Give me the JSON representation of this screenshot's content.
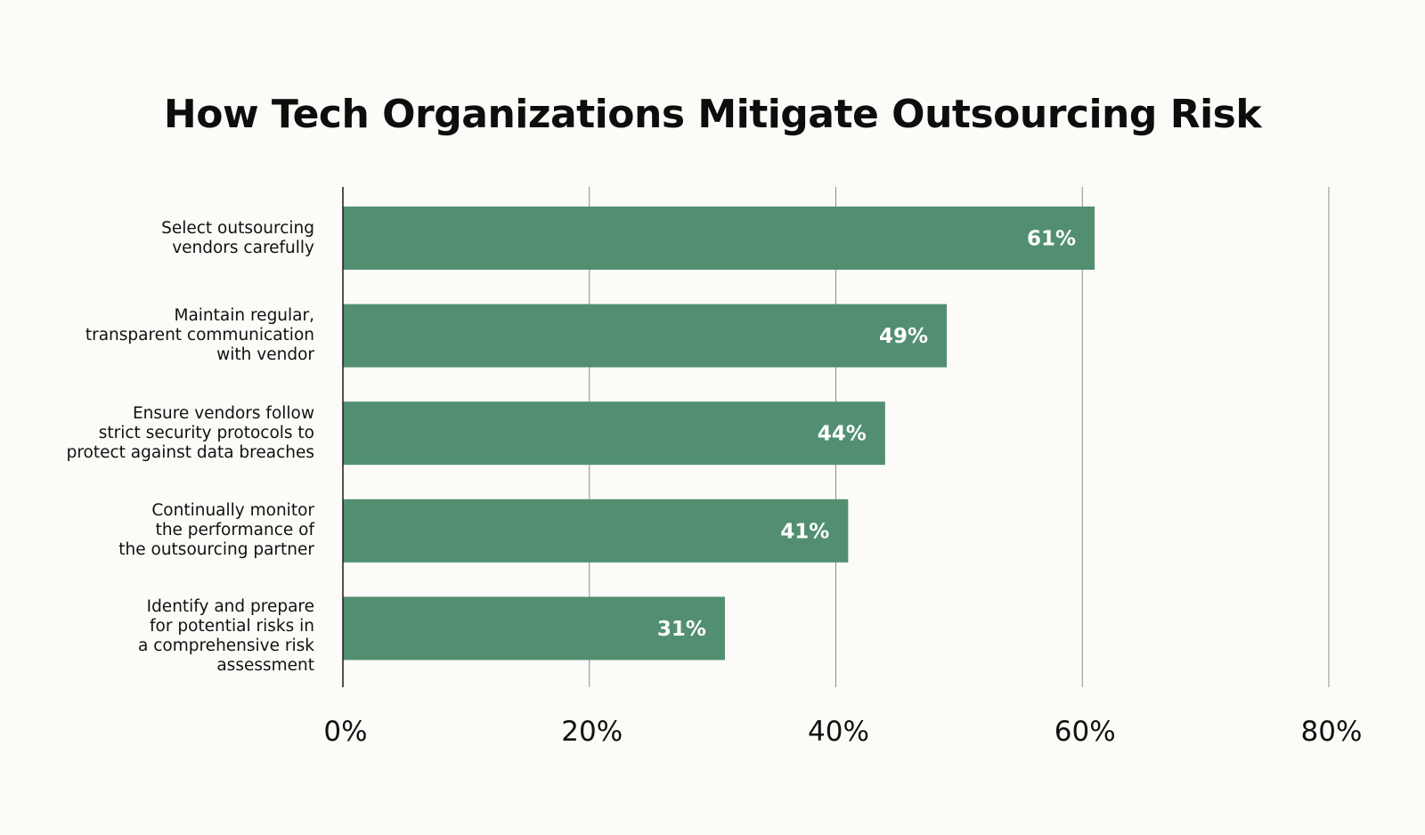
{
  "chart_data": {
    "type": "bar",
    "orientation": "horizontal",
    "title": "How Tech Organizations Mitigate Outsourcing Risk",
    "categories": [
      [
        "Select outsourcing",
        "vendors carefully"
      ],
      [
        "Maintain regular,",
        "transparent communication",
        "with vendor"
      ],
      [
        "Ensure vendors follow",
        "strict security protocols to",
        "protect against data breaches"
      ],
      [
        "Continually monitor",
        "the performance of",
        "the outsourcing partner"
      ],
      [
        "Identify and prepare",
        "for potential risks in",
        "a comprehensive risk",
        "assessment"
      ]
    ],
    "values": [
      61,
      49,
      44,
      41,
      31
    ],
    "data_labels": [
      "61%",
      "49%",
      "44%",
      "41%",
      "31%"
    ],
    "xlim": [
      0,
      80
    ],
    "xticks": [
      0,
      20,
      40,
      60,
      80
    ],
    "xtick_labels": [
      "0%",
      "20%",
      "40%",
      "60%",
      "80%"
    ],
    "grid": true,
    "bar_color": "#528f71",
    "label_color": "#ffffff",
    "gridline_color": "#8c8c8c",
    "axis_color": "#1a1a1a"
  }
}
